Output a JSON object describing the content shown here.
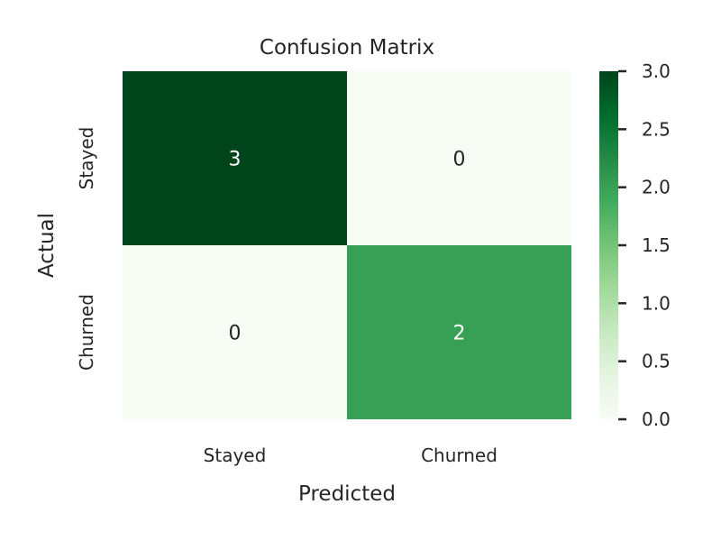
{
  "chart_data": {
    "type": "heatmap",
    "title": "Confusion Matrix",
    "xlabel": "Predicted",
    "ylabel": "Actual",
    "x_categories": [
      "Stayed",
      "Churned"
    ],
    "y_categories": [
      "Stayed",
      "Churned"
    ],
    "values": [
      [
        3,
        0
      ],
      [
        0,
        2
      ]
    ],
    "colorbar": {
      "range": [
        0,
        3
      ],
      "ticks": [
        "0.0",
        "0.5",
        "1.0",
        "1.5",
        "2.0",
        "2.5",
        "3.0"
      ],
      "colormap": "Greens",
      "low_color": "#f7fcf5",
      "high_color": "#00441b"
    },
    "grid": false
  }
}
